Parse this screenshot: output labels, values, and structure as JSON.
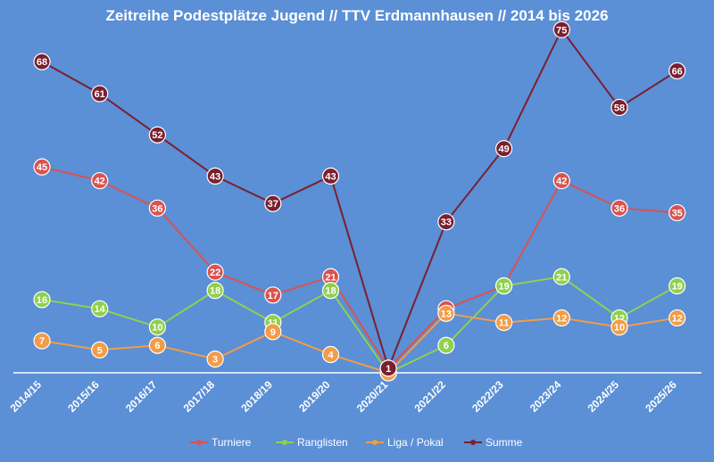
{
  "chart_data": {
    "type": "line",
    "title": "Zeitreihe Podestplätze Jugend // TTV Erdmannhausen // 2014 bis 2026",
    "xlabel": "",
    "ylabel": "",
    "categories": [
      "2014/15",
      "2015/16",
      "2016/17",
      "2017/18",
      "2018/19",
      "2019/20",
      "2020/21",
      "2021/22",
      "2022/23",
      "2023/24",
      "2024/25",
      "2025/26"
    ],
    "ylim": [
      0,
      80
    ],
    "grid": false,
    "legend_position": "bottom",
    "series": [
      {
        "name": "Turniere",
        "color": "#d9534f",
        "values": [
          45,
          42,
          36,
          22,
          17,
          21,
          1,
          14,
          19,
          42,
          36,
          35
        ]
      },
      {
        "name": "Ranglisten",
        "color": "#8fd14f",
        "values": [
          16,
          14,
          10,
          18,
          11,
          18,
          0,
          6,
          19,
          21,
          12,
          19
        ]
      },
      {
        "name": "Liga / Pokal",
        "color": "#f39c47",
        "values": [
          7,
          5,
          6,
          3,
          9,
          4,
          0,
          13,
          11,
          12,
          10,
          12
        ]
      },
      {
        "name": "Summe",
        "color": "#7b1f2e",
        "values": [
          68,
          61,
          52,
          43,
          37,
          43,
          1,
          33,
          49,
          75,
          58,
          66
        ]
      }
    ]
  }
}
